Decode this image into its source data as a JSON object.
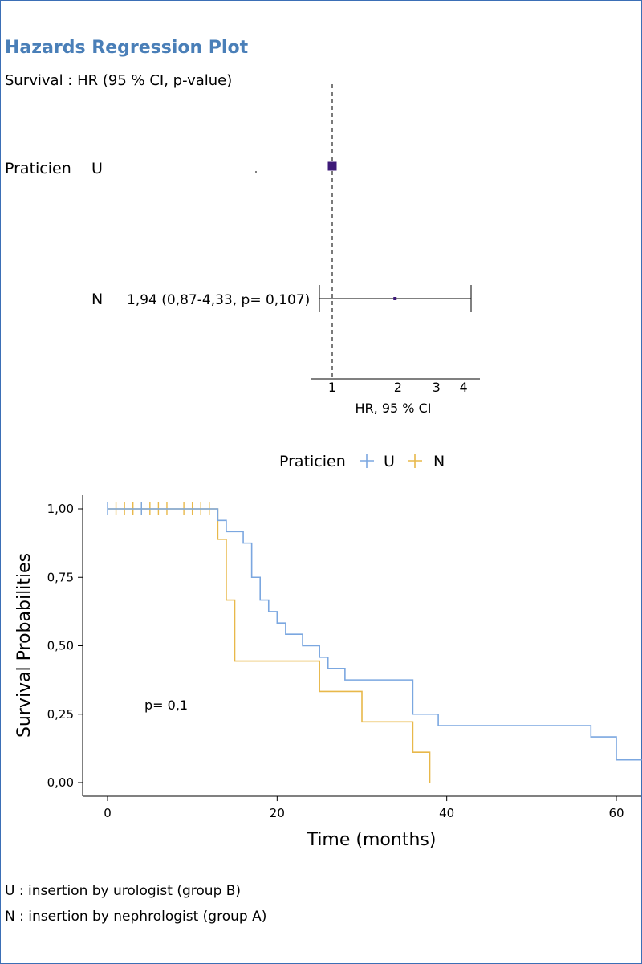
{
  "forest": {
    "title": "Hazards Regression Plot",
    "subtitle": "Survival : HR (95 % CI, p-value)",
    "variable": "Praticien",
    "rows": [
      {
        "level": "U",
        "reference": true,
        "hr": 1,
        "label": ""
      },
      {
        "level": "N",
        "reference": false,
        "hr": 1.94,
        "ci": [
          0.87,
          4.33
        ],
        "p": 0.107,
        "label": "1,94 (0,87-4,33, p= 0,107)"
      }
    ],
    "axis_ticks": [
      "1",
      "2",
      "3",
      "4"
    ],
    "xlabel": "HR, 95 % CI",
    "marker_color": "#3d1a78"
  },
  "chart_data": {
    "type": "line",
    "subtype": "kaplan-meier",
    "legend": {
      "title": "Praticien",
      "placement": "top",
      "entries": [
        "U",
        "N"
      ]
    },
    "xlabel": "Time (months)",
    "ylabel": "Survival Probabilities",
    "xlim": [
      -3,
      63
    ],
    "ylim": [
      -0.05,
      1.05
    ],
    "xticks": [
      0,
      20,
      40,
      60
    ],
    "yticks": [
      0,
      0.25,
      0.5,
      0.75,
      1
    ],
    "ytick_labels": [
      "0,00",
      "0,25",
      "0,50",
      "0,75",
      "1,00"
    ],
    "annotation": "p= 0,1",
    "series": [
      {
        "name": "U",
        "color": "#7ba7e0",
        "steps": [
          [
            0,
            1.0
          ],
          [
            13,
            0.958
          ],
          [
            14,
            0.917
          ],
          [
            16,
            0.875
          ],
          [
            17,
            0.75
          ],
          [
            18,
            0.667
          ],
          [
            19,
            0.625
          ],
          [
            20,
            0.583
          ],
          [
            21,
            0.542
          ],
          [
            23,
            0.5
          ],
          [
            25,
            0.458
          ],
          [
            26,
            0.417
          ],
          [
            28,
            0.375
          ],
          [
            36,
            0.25
          ],
          [
            39,
            0.208
          ],
          [
            57,
            0.167
          ],
          [
            60,
            0.083
          ],
          [
            63,
            0.083
          ]
        ],
        "censored": [
          0,
          4
        ]
      },
      {
        "name": "N",
        "color": "#e8b84a",
        "steps": [
          [
            0,
            1.0
          ],
          [
            13,
            0.889
          ],
          [
            14,
            0.667
          ],
          [
            15,
            0.444
          ],
          [
            25,
            0.333
          ],
          [
            30,
            0.222
          ],
          [
            36,
            0.111
          ],
          [
            38,
            0.0
          ]
        ],
        "censored": [
          1,
          2,
          3,
          4,
          5,
          6,
          7,
          9,
          10,
          11,
          12
        ]
      }
    ]
  },
  "footnotes": [
    "U : insertion by urologist (group B)",
    "N : insertion by nephrologist (group A)"
  ]
}
